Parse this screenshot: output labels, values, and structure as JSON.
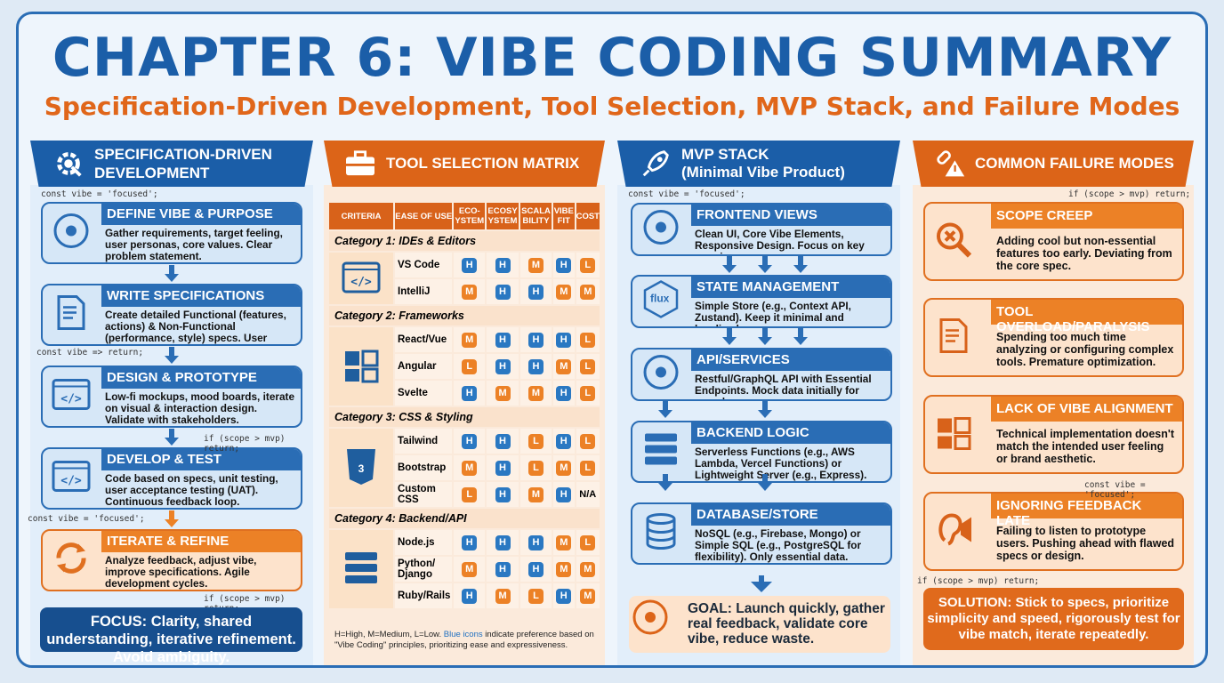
{
  "title": "CHAPTER 6: VIBE CODING SUMMARY",
  "subtitle": "Specification-Driven Development, Tool Selection, MVP Stack, and Failure Modes",
  "colors": {
    "blue": "#1b5ea8",
    "orange": "#dc6418",
    "high_badge": "#2a78c2",
    "medium_low_badge": "#ec8126"
  },
  "spec": {
    "header": "SPECIFICATION-DRIVEN DEVELOPMENT",
    "icon": "gear-wrench-icon",
    "code_lines": [
      "const vibe = 'focused';",
      "const vibe => return;",
      "if (scope > mvp) return;",
      "const vibe = 'focused';",
      "if (scope > mvp) return;"
    ],
    "steps": [
      {
        "title": "DEFINE VIBE & PURPOSE",
        "text": "Gather requirements, target feeling, user personas, core values. Clear problem statement.",
        "icon": "brain-lightbulb-icon"
      },
      {
        "title": "WRITE SPECIFICATIONS",
        "text": "Create detailed Functional (features, actions) & Non-Functional (performance, style) specs. User stories, acceptance criteria.",
        "icon": "document-pen-icon"
      },
      {
        "title": "DESIGN & PROTOTYPE",
        "text": "Low-fi mockups, mood boards, iterate on visual & interaction design. Validate with stakeholders.",
        "icon": "tablet-wireframe-icon"
      },
      {
        "title": "DEVELOP & TEST",
        "text": "Code based on specs, unit testing, user acceptance testing (UAT). Continuous feedback loop.",
        "icon": "code-window-check-icon"
      },
      {
        "title": "ITERATE & REFINE",
        "text": "Analyze feedback, adjust vibe, improve specifications. Agile development cycles.",
        "icon": "refresh-cycle-icon"
      }
    ],
    "focus": "FOCUS: Clarity, shared understanding, iterative refinement. Avoid ambiguity."
  },
  "matrix": {
    "header": "TOOL SELECTION MATRIX",
    "icon": "toolbox-icon",
    "columns": [
      "CRITERIA",
      "EASE OF USE",
      "ECO-YSTEM",
      "ECOSY YSTEM",
      "SCALA BILITY",
      "VIBE FIT",
      "COST"
    ],
    "categories": [
      {
        "label": "Category 1: IDEs & Editors",
        "icon": "code-window-icon",
        "rows": [
          {
            "name": "VS Code",
            "values": [
              "H",
              "H",
              "M",
              "H",
              "L"
            ]
          },
          {
            "name": "IntelliJ",
            "values": [
              "M",
              "H",
              "H",
              "M",
              "M"
            ]
          }
        ]
      },
      {
        "label": "Category 2: Frameworks",
        "icon": "puzzle-pieces-icon",
        "rows": [
          {
            "name": "React/Vue",
            "values": [
              "M",
              "H",
              "H",
              "H",
              "L"
            ]
          },
          {
            "name": "Angular",
            "values": [
              "L",
              "H",
              "H",
              "M",
              "L"
            ]
          },
          {
            "name": "Svelte",
            "values": [
              "H",
              "M",
              "M",
              "H",
              "L"
            ]
          }
        ]
      },
      {
        "label": "Category 3: CSS & Styling",
        "icon": "css3-shield-icon",
        "rows": [
          {
            "name": "Tailwind",
            "values": [
              "H",
              "H",
              "L",
              "H",
              "L"
            ]
          },
          {
            "name": "Bootstrap",
            "values": [
              "M",
              "H",
              "L",
              "M",
              "L"
            ]
          },
          {
            "name": "Custom CSS",
            "values": [
              "L",
              "H",
              "M",
              "H",
              "N/A"
            ]
          }
        ]
      },
      {
        "label": "Category 4: Backend/API",
        "icon": "server-stack-icon",
        "rows": [
          {
            "name": "Node.js",
            "values": [
              "H",
              "H",
              "H",
              "M",
              "L"
            ]
          },
          {
            "name": "Python/ Django",
            "values": [
              "M",
              "H",
              "H",
              "M",
              "M"
            ]
          },
          {
            "name": "Ruby/Rails",
            "values": [
              "H",
              "M",
              "L",
              "H",
              "M"
            ]
          }
        ]
      }
    ],
    "note_prefix": "H=High, M=Medium, L=Low. ",
    "note_highlight": "Blue icons",
    "note_suffix": " indicate preference based on \"Vibe Coding\" principles, prioritizing ease and expressiveness."
  },
  "mvp": {
    "header_line1": "MVP STACK",
    "header_line2": "(Minimal Vibe Product)",
    "icon": "rocket-icon",
    "code": "const vibe = 'focused';",
    "layers": [
      {
        "title": "FRONTEND VIEWS",
        "text": "Clean UI, Core Vibe Elements, Responsive Design. Focus on key user journey.",
        "icon": "eye-window-icon"
      },
      {
        "title": "STATE MANAGEMENT",
        "text": "Simple Store (e.g., Context API, Zustand). Keep it minimal and localized.",
        "icon": "flux-hexagon-icon",
        "icon_text": "flux"
      },
      {
        "title": "API/SERVICES",
        "text": "Restful/GraphQL API with Essential Endpoints. Mock data initially for speed.",
        "icon": "cloud-network-icon"
      },
      {
        "title": "BACKEND LOGIC",
        "text": "Serverless Functions (e.g., AWS Lambda, Vercel Functions) or Lightweight Server (e.g., Express). Auth & Basic Business Logic.",
        "icon": "server-gear-icon"
      },
      {
        "title": "DATABASE/STORE",
        "text": "NoSQL (e.g., Firebase, Mongo) or Simple SQL (e.g., PostgreSQL for flexibility). Only essential data.",
        "icon": "database-icon"
      }
    ],
    "goal": "GOAL: Launch quickly, gather real feedback, validate core vibe, reduce waste.",
    "goal_icon": "target-arrow-icon"
  },
  "failures": {
    "header": "COMMON FAILURE MODES",
    "icon": "broken-link-warning-icon",
    "code_lines": [
      "if (scope > mvp) return;",
      "const vibe = 'focused';",
      "if (scope > mvp) return;"
    ],
    "items": [
      {
        "title": "SCOPE CREEP",
        "text": "Adding cool but non-essential features too early. Deviating from the core spec.",
        "icon": "magnifier-x-icon"
      },
      {
        "title": "TOOL OVERLOAD/PARALYSIS",
        "text": "Spending too much time analyzing or configuring complex tools. Premature optimization.",
        "icon": "toolbox-tools-icon"
      },
      {
        "title": "LACK OF VIBE ALIGNMENT",
        "text": "Technical implementation doesn't match the intended user feeling or brand aesthetic.",
        "icon": "mismatched-puzzle-icon"
      },
      {
        "title": "IGNORING FEEDBACK LATE",
        "text": "Failing to listen to prototype users. Pushing ahead with flawed specs or design.",
        "icon": "ear-megaphone-icon"
      }
    ],
    "solution": "SOLUTION: Stick to specs, prioritize simplicity and speed, rigorously test for vibe match, iterate repeatedly."
  }
}
